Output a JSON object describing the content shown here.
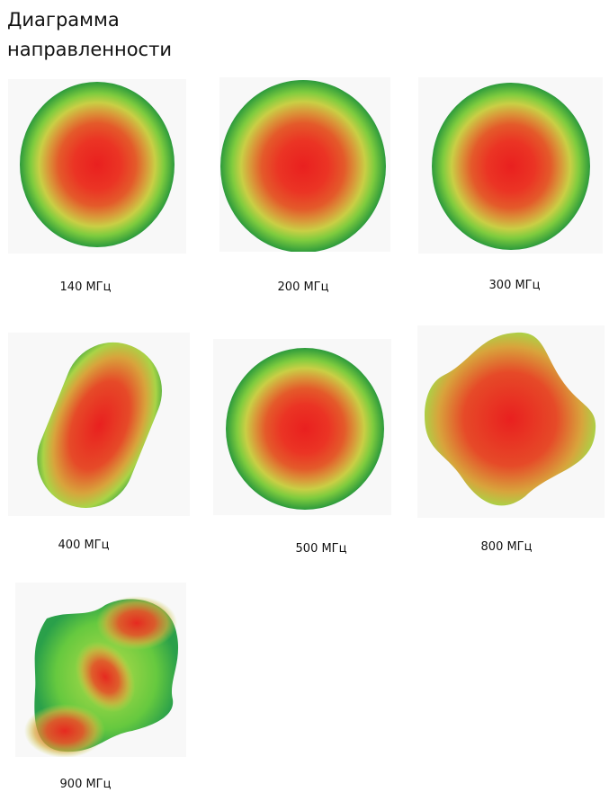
{
  "title": "Диаграмма направленности",
  "items": [
    {
      "label": "140 МГц"
    },
    {
      "label": "200 МГц"
    },
    {
      "label": "300 МГц"
    },
    {
      "label": "400 МГц"
    },
    {
      "label": "500 МГц"
    },
    {
      "label": "800 МГц"
    },
    {
      "label": "900 МГц"
    }
  ]
}
